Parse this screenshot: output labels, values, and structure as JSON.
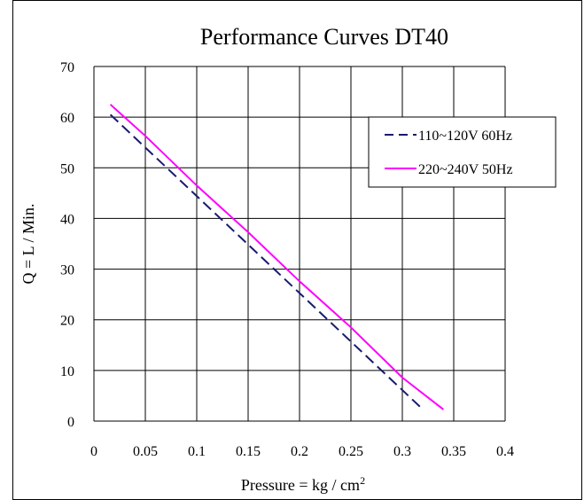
{
  "chart_data": {
    "type": "line",
    "title": "Performance  Curves  DT40",
    "xlabel_main": "Pressure = kg / cm",
    "xlabel_sup": "2",
    "ylabel": "Q = L / Min.",
    "xlim": [
      0,
      0.4
    ],
    "ylim": [
      0,
      70
    ],
    "grid": true,
    "legend_position": "top-right",
    "x_ticks": [
      {
        "value": 0,
        "label": "0"
      },
      {
        "value": 0.05,
        "label": "0.05"
      },
      {
        "value": 0.1,
        "label": "0.1"
      },
      {
        "value": 0.15,
        "label": "0.15"
      },
      {
        "value": 0.2,
        "label": "0.2"
      },
      {
        "value": 0.25,
        "label": "0.25"
      },
      {
        "value": 0.3,
        "label": "0.3"
      },
      {
        "value": 0.35,
        "label": "0.35"
      },
      {
        "value": 0.4,
        "label": "0.4"
      }
    ],
    "y_ticks": [
      {
        "value": 0,
        "label": "0"
      },
      {
        "value": 10,
        "label": "10"
      },
      {
        "value": 20,
        "label": "20"
      },
      {
        "value": 30,
        "label": "30"
      },
      {
        "value": 40,
        "label": "40"
      },
      {
        "value": 50,
        "label": "50"
      },
      {
        "value": 60,
        "label": "60"
      },
      {
        "value": 70,
        "label": "70"
      }
    ],
    "series": [
      {
        "name": "110~120V 60Hz",
        "color": "#1a1a6e",
        "dash": true,
        "points": [
          [
            0.016,
            60.5
          ],
          [
            0.32,
            2.3
          ]
        ]
      },
      {
        "name": "220~240V 50Hz",
        "color": "#ff00ff",
        "dash": false,
        "points": [
          [
            0.016,
            62.5
          ],
          [
            0.05,
            56.3
          ],
          [
            0.1,
            46.5
          ],
          [
            0.15,
            37.3
          ],
          [
            0.2,
            27.6
          ],
          [
            0.25,
            18.5
          ],
          [
            0.3,
            8.6
          ],
          [
            0.34,
            2.3
          ]
        ]
      }
    ]
  }
}
